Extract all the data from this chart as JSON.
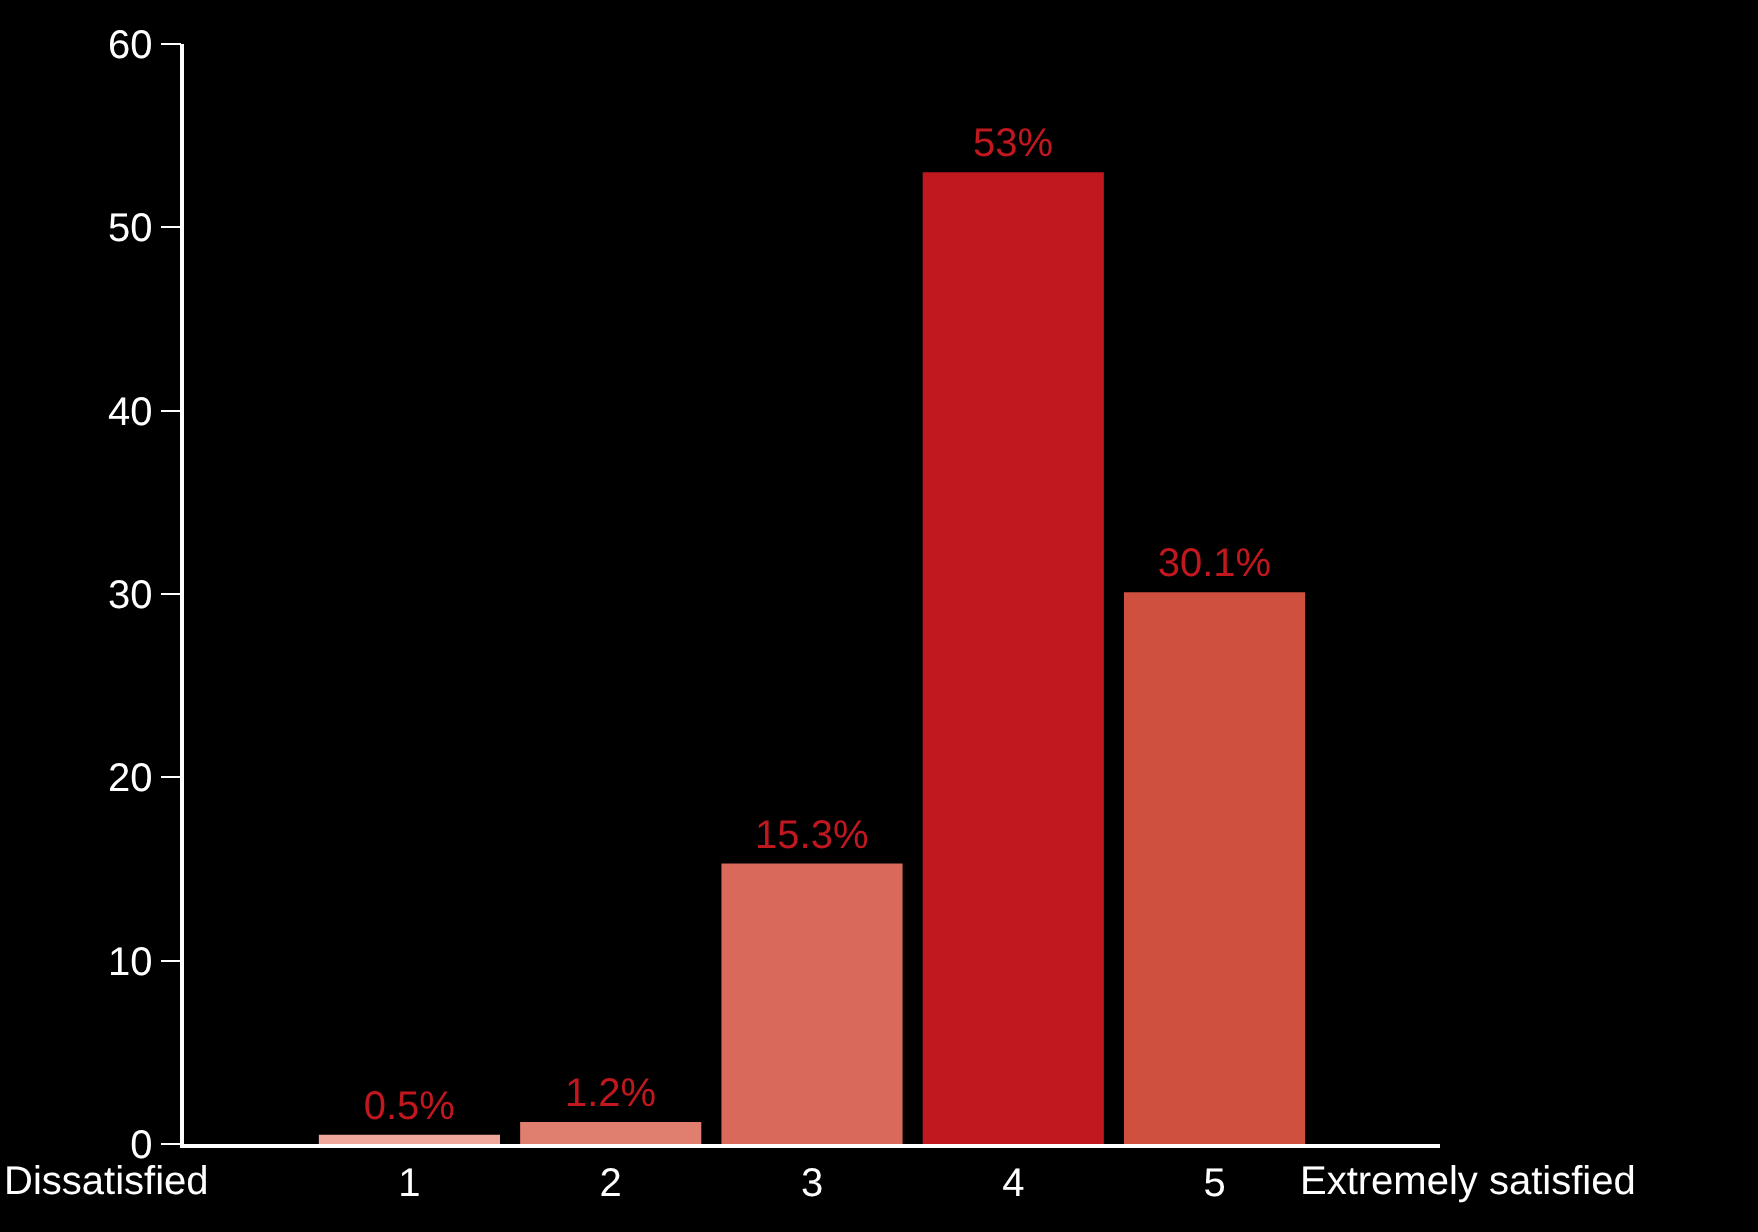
{
  "chart_data": {
    "type": "bar",
    "categories": [
      "1",
      "2",
      "3",
      "4",
      "5"
    ],
    "values": [
      0.5,
      1.2,
      15.3,
      53,
      30.1
    ],
    "colors": [
      "#f0a89c",
      "#e07f70",
      "#d9695a",
      "#c1171e",
      "#d05040"
    ],
    "value_labels": [
      "0.5%",
      "1.2%",
      "15.3%",
      "53%",
      "30.1%"
    ],
    "ylim": [
      0,
      60
    ],
    "yticks": [
      0,
      10,
      20,
      30,
      40,
      50,
      60
    ],
    "grid": false,
    "legend": false,
    "annotations": [
      "Dissatisfied",
      "Extremely satisfied"
    ]
  }
}
